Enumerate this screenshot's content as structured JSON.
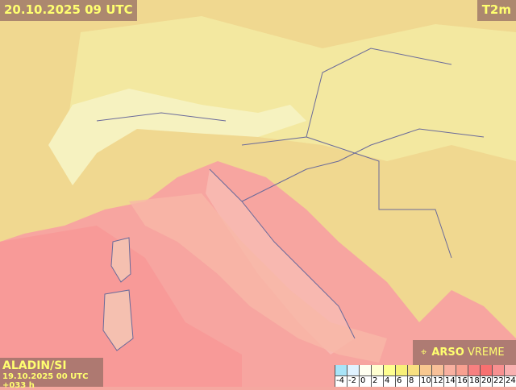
{
  "header": {
    "valid_time": "20.10.2025 09 UTC",
    "parameter": "T2m"
  },
  "model": {
    "name": "ALADIN/SI",
    "run": "19.10.2025 00 UTC +033 h"
  },
  "logo": {
    "brand": "ARSO",
    "product": "VREME",
    "icon": "satellite-dish-icon"
  },
  "legend": {
    "unit_levels": [
      {
        "label": "-4",
        "color": "#a8e4f8"
      },
      {
        "label": "-2",
        "color": "#e0f2ff"
      },
      {
        "label": "0",
        "color": "#fffff0"
      },
      {
        "label": "2",
        "color": "#ffffd0"
      },
      {
        "label": "4",
        "color": "#ffff90"
      },
      {
        "label": "6",
        "color": "#f8f078"
      },
      {
        "label": "8",
        "color": "#f8e080"
      },
      {
        "label": "10",
        "color": "#f8c890"
      },
      {
        "label": "12",
        "color": "#f8c098"
      },
      {
        "label": "14",
        "color": "#f8b0a0"
      },
      {
        "label": "16",
        "color": "#f8a090"
      },
      {
        "label": "18",
        "color": "#f88080"
      },
      {
        "label": "20",
        "color": "#f87070"
      },
      {
        "label": "22",
        "color": "#f89090"
      },
      {
        "label": "24",
        "color": "#f8b0b0"
      }
    ]
  }
}
